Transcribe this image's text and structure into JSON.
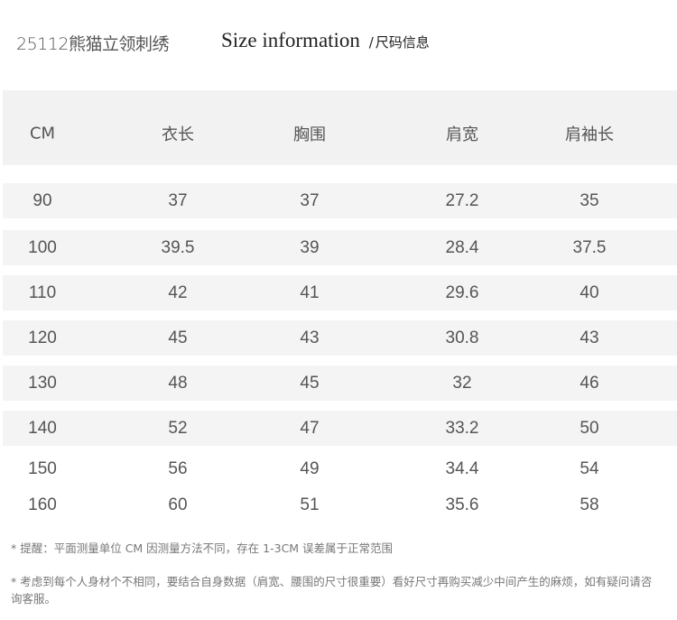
{
  "product_code": "25112熊猫立领刺绣",
  "title": {
    "en": "Size information",
    "separator": "/",
    "cn": "尺码信息"
  },
  "table": {
    "headers": [
      "CM",
      "衣长",
      "胸围",
      "肩宽",
      "肩袖长"
    ],
    "rows": [
      [
        "90",
        "37",
        "37",
        "27.2",
        "35"
      ],
      [
        "100",
        "39.5",
        "39",
        "28.4",
        "37.5"
      ],
      [
        "110",
        "42",
        "41",
        "29.6",
        "40"
      ],
      [
        "120",
        "45",
        "43",
        "30.8",
        "43"
      ],
      [
        "130",
        "48",
        "45",
        "32",
        "46"
      ],
      [
        "140",
        "52",
        "47",
        "33.2",
        "50"
      ],
      [
        "150",
        "56",
        "49",
        "34.4",
        "54"
      ],
      [
        "160",
        "60",
        "51",
        "35.6",
        "58"
      ]
    ],
    "header_bg": "#f2f2f2",
    "row_bg": "#f4f4f4"
  },
  "notes": [
    "* 提醒：平面测量单位 CM 因测量方法不同，存在 1-3CM 误差属于正常范围",
    "* 考虑到每个人身材个不相同，要结合自身数据（肩宽、腰围的尺寸很重要）看好尺寸再购买减少中间产生的麻烦，如有疑问请咨询客服。"
  ]
}
